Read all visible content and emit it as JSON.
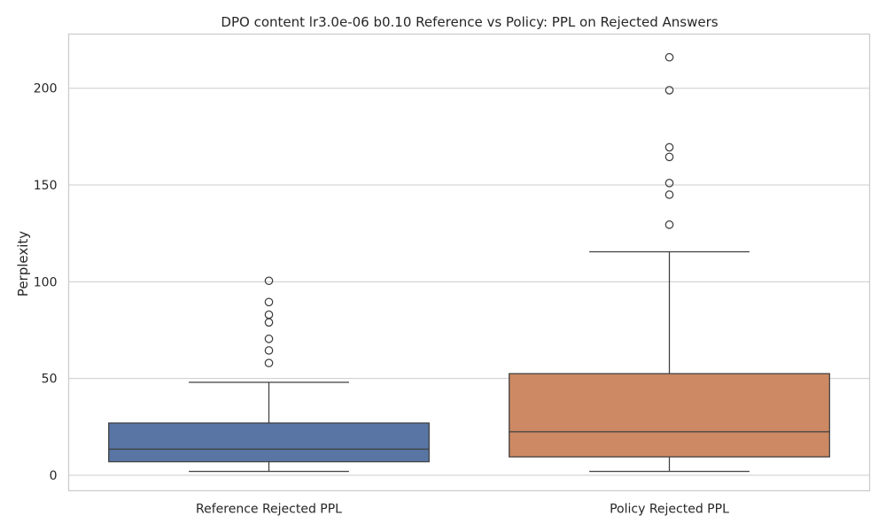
{
  "chart_data": {
    "type": "box",
    "title": "DPO content lr3.0e-06 b0.10 Reference vs Policy: PPL on Rejected Answers",
    "xlabel": "",
    "ylabel": "Perplexity",
    "ylim": [
      -8,
      228
    ],
    "yticks": [
      0,
      50,
      100,
      150,
      200
    ],
    "grid": true,
    "categories": [
      "Reference Rejected PPL",
      "Policy Rejected PPL"
    ],
    "series": [
      {
        "category": "Reference Rejected PPL",
        "color": "#5875a4",
        "whisker_low": 2,
        "q1": 7,
        "median": 13.5,
        "q3": 27,
        "whisker_high": 48,
        "outliers": [
          58,
          64.5,
          70.5,
          79,
          83,
          89.5,
          100.5
        ]
      },
      {
        "category": "Policy Rejected PPL",
        "color": "#cc8963",
        "whisker_low": 2,
        "q1": 9.5,
        "median": 22.5,
        "q3": 52.5,
        "whisker_high": 115.5,
        "outliers": [
          129.5,
          145,
          151,
          164.5,
          169.5,
          199,
          216
        ]
      }
    ]
  }
}
